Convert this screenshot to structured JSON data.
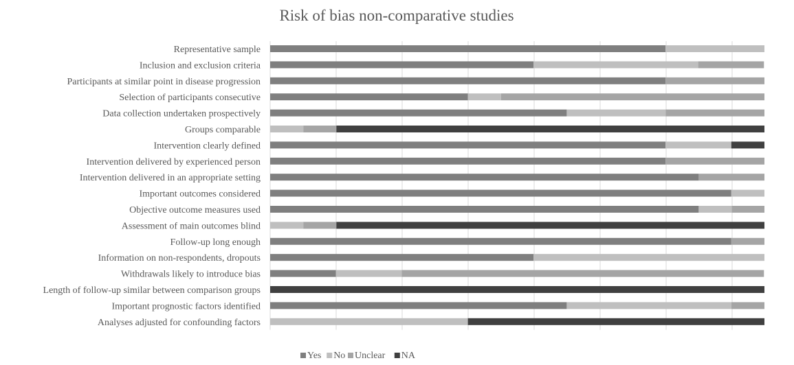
{
  "chart_data": {
    "type": "bar",
    "orientation": "horizontal",
    "stacked": "percent",
    "title": "Risk of bias non-comparative studies",
    "xlabel": "",
    "ylabel": "",
    "xlim": [
      0,
      100
    ],
    "grid": true,
    "legend_position": "bottom",
    "categories": [
      "Representative sample",
      "Inclusion and exclusion criteria",
      "Participants at similar point in disease progression",
      "Selection of participants consecutive",
      "Data collection undertaken prospectively",
      "Groups comparable",
      "Intervention clearly defined",
      "Intervention delivered by experienced person",
      "Intervention delivered in an appropriate setting",
      "Important outcomes considered",
      "Objective outcome measures used",
      "Assessment of main outcomes blind",
      "Follow-up long enough",
      "Information on non-respondents, dropouts",
      "Withdrawals likely to introduce bias",
      "Length of follow-up similar between comparison groups",
      "Important prognostic factors identified",
      "Analyses adjusted for confounding factors"
    ],
    "series": [
      {
        "name": "Yes",
        "color": "#7f7f7f",
        "values": [
          80,
          53.3,
          80,
          40,
          60,
          0,
          80,
          80,
          86.7,
          93.3,
          86.7,
          0,
          93.3,
          53.3,
          13.3,
          0,
          60,
          0
        ]
      },
      {
        "name": "No",
        "color": "#bfbfbf",
        "values": [
          20,
          33.3,
          0,
          6.7,
          20,
          6.7,
          13.3,
          0,
          0,
          6.7,
          6.7,
          6.7,
          0,
          46.7,
          13.3,
          0,
          33.3,
          40
        ]
      },
      {
        "name": "Unclear",
        "color": "#a5a5a5",
        "values": [
          0,
          13.3,
          20,
          53.3,
          20,
          6.7,
          0,
          20,
          13.3,
          0,
          6.7,
          6.7,
          6.7,
          0,
          73.3,
          0,
          6.7,
          0
        ]
      },
      {
        "name": "NA",
        "color": "#404040",
        "values": [
          0,
          0,
          0,
          0,
          0,
          86.7,
          6.7,
          0,
          0,
          0,
          0,
          86.7,
          0,
          0,
          0,
          100,
          0,
          60
        ]
      }
    ]
  }
}
